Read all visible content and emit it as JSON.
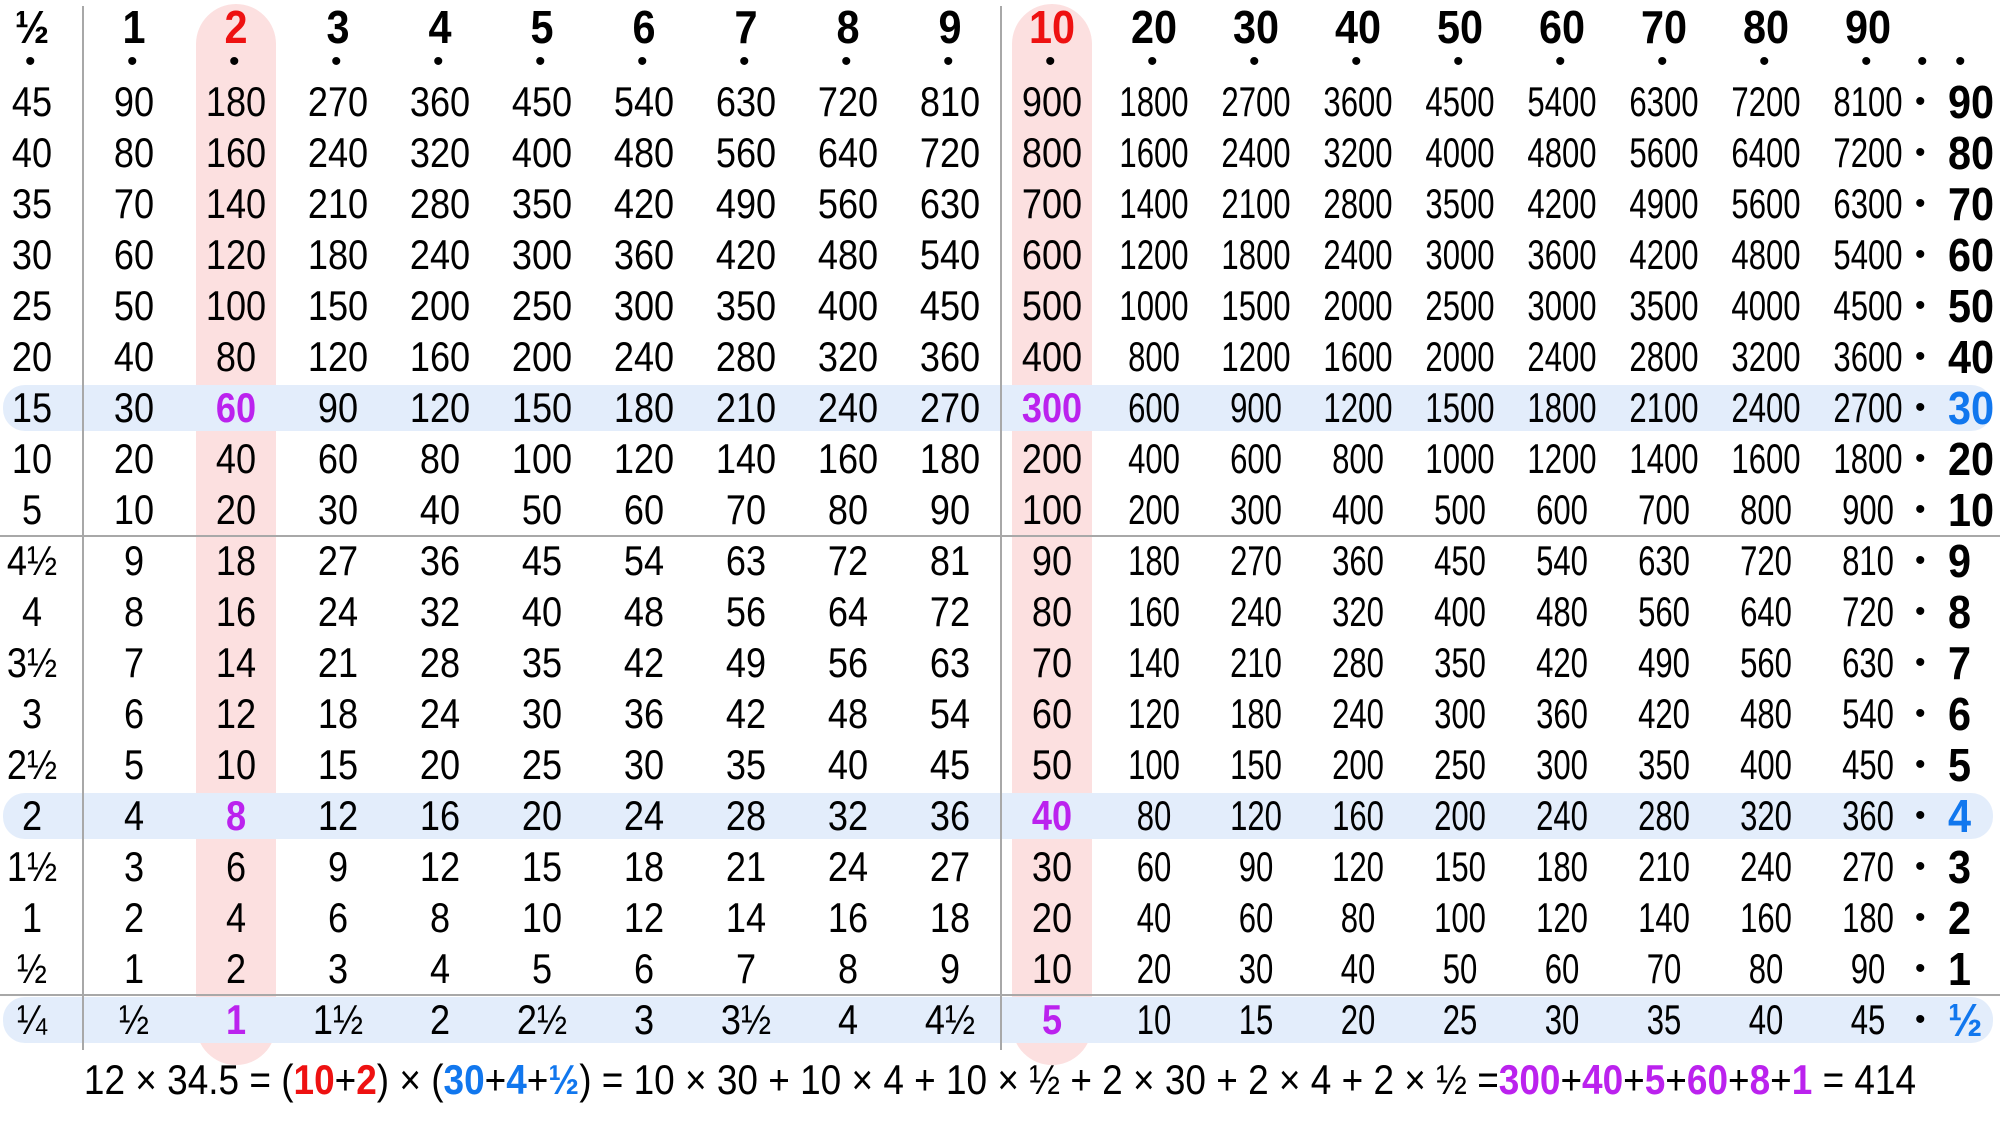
{
  "table": {
    "col_headers": [
      "½",
      "1",
      "2",
      "3",
      "4",
      "5",
      "6",
      "7",
      "8",
      "9",
      "10",
      "20",
      "30",
      "40",
      "50",
      "60",
      "70",
      "80",
      "90"
    ],
    "rows": [
      {
        "cells": [
          "45",
          "90",
          "180",
          "270",
          "360",
          "450",
          "540",
          "630",
          "720",
          "810",
          "900",
          "1800",
          "2700",
          "3600",
          "4500",
          "5400",
          "6300",
          "7200",
          "8100"
        ],
        "label": "90"
      },
      {
        "cells": [
          "40",
          "80",
          "160",
          "240",
          "320",
          "400",
          "480",
          "560",
          "640",
          "720",
          "800",
          "1600",
          "2400",
          "3200",
          "4000",
          "4800",
          "5600",
          "6400",
          "7200"
        ],
        "label": "80"
      },
      {
        "cells": [
          "35",
          "70",
          "140",
          "210",
          "280",
          "350",
          "420",
          "490",
          "560",
          "630",
          "700",
          "1400",
          "2100",
          "2800",
          "3500",
          "4200",
          "4900",
          "5600",
          "6300"
        ],
        "label": "70"
      },
      {
        "cells": [
          "30",
          "60",
          "120",
          "180",
          "240",
          "300",
          "360",
          "420",
          "480",
          "540",
          "600",
          "1200",
          "1800",
          "2400",
          "3000",
          "3600",
          "4200",
          "4800",
          "5400"
        ],
        "label": "60"
      },
      {
        "cells": [
          "25",
          "50",
          "100",
          "150",
          "200",
          "250",
          "300",
          "350",
          "400",
          "450",
          "500",
          "1000",
          "1500",
          "2000",
          "2500",
          "3000",
          "3500",
          "4000",
          "4500"
        ],
        "label": "50"
      },
      {
        "cells": [
          "20",
          "40",
          "80",
          "120",
          "160",
          "200",
          "240",
          "280",
          "320",
          "360",
          "400",
          "800",
          "1200",
          "1600",
          "2000",
          "2400",
          "2800",
          "3200",
          "3600"
        ],
        "label": "40"
      },
      {
        "cells": [
          "15",
          "30",
          "60",
          "90",
          "120",
          "150",
          "180",
          "210",
          "240",
          "270",
          "300",
          "600",
          "900",
          "1200",
          "1500",
          "1800",
          "2100",
          "2400",
          "2700"
        ],
        "label": "30"
      },
      {
        "cells": [
          "10",
          "20",
          "40",
          "60",
          "80",
          "100",
          "120",
          "140",
          "160",
          "180",
          "200",
          "400",
          "600",
          "800",
          "1000",
          "1200",
          "1400",
          "1600",
          "1800"
        ],
        "label": "20"
      },
      {
        "cells": [
          "5",
          "10",
          "20",
          "30",
          "40",
          "50",
          "60",
          "70",
          "80",
          "90",
          "100",
          "200",
          "300",
          "400",
          "500",
          "600",
          "700",
          "800",
          "900"
        ],
        "label": "10"
      },
      {
        "cells": [
          "4½",
          "9",
          "18",
          "27",
          "36",
          "45",
          "54",
          "63",
          "72",
          "81",
          "90",
          "180",
          "270",
          "360",
          "450",
          "540",
          "630",
          "720",
          "810"
        ],
        "label": "9"
      },
      {
        "cells": [
          "4",
          "8",
          "16",
          "24",
          "32",
          "40",
          "48",
          "56",
          "64",
          "72",
          "80",
          "160",
          "240",
          "320",
          "400",
          "480",
          "560",
          "640",
          "720"
        ],
        "label": "8"
      },
      {
        "cells": [
          "3½",
          "7",
          "14",
          "21",
          "28",
          "35",
          "42",
          "49",
          "56",
          "63",
          "70",
          "140",
          "210",
          "280",
          "350",
          "420",
          "490",
          "560",
          "630"
        ],
        "label": "7"
      },
      {
        "cells": [
          "3",
          "6",
          "12",
          "18",
          "24",
          "30",
          "36",
          "42",
          "48",
          "54",
          "60",
          "120",
          "180",
          "240",
          "300",
          "360",
          "420",
          "480",
          "540"
        ],
        "label": "6"
      },
      {
        "cells": [
          "2½",
          "5",
          "10",
          "15",
          "20",
          "25",
          "30",
          "35",
          "40",
          "45",
          "50",
          "100",
          "150",
          "200",
          "250",
          "300",
          "350",
          "400",
          "450"
        ],
        "label": "5"
      },
      {
        "cells": [
          "2",
          "4",
          "8",
          "12",
          "16",
          "20",
          "24",
          "28",
          "32",
          "36",
          "40",
          "80",
          "120",
          "160",
          "200",
          "240",
          "280",
          "320",
          "360"
        ],
        "label": "4"
      },
      {
        "cells": [
          "1½",
          "3",
          "6",
          "9",
          "12",
          "15",
          "18",
          "21",
          "24",
          "27",
          "30",
          "60",
          "90",
          "120",
          "150",
          "180",
          "210",
          "240",
          "270"
        ],
        "label": "3"
      },
      {
        "cells": [
          "1",
          "2",
          "4",
          "6",
          "8",
          "10",
          "12",
          "14",
          "16",
          "18",
          "20",
          "40",
          "60",
          "80",
          "100",
          "120",
          "140",
          "160",
          "180"
        ],
        "label": "2"
      },
      {
        "cells": [
          "½",
          "1",
          "2",
          "3",
          "4",
          "5",
          "6",
          "7",
          "8",
          "9",
          "10",
          "20",
          "30",
          "40",
          "50",
          "60",
          "70",
          "80",
          "90"
        ],
        "label": "1"
      },
      {
        "cells": [
          "¼",
          "½",
          "1",
          "1½",
          "2",
          "2½",
          "3",
          "3½",
          "4",
          "4½",
          "5",
          "10",
          "15",
          "20",
          "25",
          "30",
          "35",
          "40",
          "45"
        ],
        "label": "½"
      }
    ],
    "highlight_cols": [
      2,
      10
    ],
    "highlight_rows": [
      6,
      14,
      18
    ]
  },
  "colors": {
    "red": "#ee1111",
    "blue": "#1177ee",
    "magenta": "#bb22ee",
    "col_highlight": "#fce0e0",
    "row_highlight": "#e3edfb",
    "grid_line": "#a8a8a8"
  },
  "dot_glyph": "•",
  "formula": [
    {
      "t": "12 × 34.5 = (",
      "c": ""
    },
    {
      "t": "10",
      "c": "red"
    },
    {
      "t": "+",
      "c": ""
    },
    {
      "t": "2",
      "c": "red"
    },
    {
      "t": ") × (",
      "c": ""
    },
    {
      "t": "30",
      "c": "blue"
    },
    {
      "t": "+",
      "c": ""
    },
    {
      "t": "4",
      "c": "blue"
    },
    {
      "t": "+",
      "c": ""
    },
    {
      "t": "½",
      "c": "blue"
    },
    {
      "t": ") = 10 × 30 + 10 × 4 + 10 × ½ + 2 × 30 + 2 × 4 + 2 × ½ =",
      "c": ""
    },
    {
      "t": "300",
      "c": "mag"
    },
    {
      "t": "+",
      "c": ""
    },
    {
      "t": "40",
      "c": "mag"
    },
    {
      "t": "+",
      "c": ""
    },
    {
      "t": "5",
      "c": "mag"
    },
    {
      "t": "+",
      "c": ""
    },
    {
      "t": "60",
      "c": "mag"
    },
    {
      "t": "+",
      "c": ""
    },
    {
      "t": "8",
      "c": "mag"
    },
    {
      "t": "+",
      "c": ""
    },
    {
      "t": "1",
      "c": "mag"
    },
    {
      "t": " = 414",
      "c": ""
    }
  ]
}
